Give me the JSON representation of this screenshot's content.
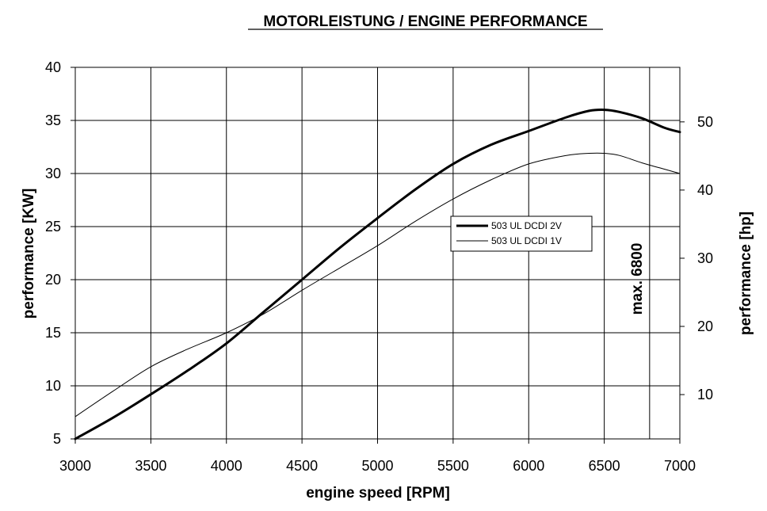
{
  "chart_data": {
    "type": "line",
    "title": "MOTORLEISTUNG / ENGINE PERFORMANCE",
    "xlabel": "engine speed [RPM]",
    "ylabel": "performance [KW]",
    "y2label": "performance [hp]",
    "xlim": [
      3000,
      7000
    ],
    "ylim": [
      5,
      40
    ],
    "y2lim": [
      3.5,
      58
    ],
    "x_ticks": [
      "3000",
      "3500",
      "4000",
      "4500",
      "5000",
      "5500",
      "6000",
      "6500",
      "7000"
    ],
    "y_ticks": [
      "5",
      "10",
      "15",
      "20",
      "25",
      "30",
      "35",
      "40"
    ],
    "y2_ticks": [
      "10",
      "20",
      "30",
      "40",
      "50"
    ],
    "grid": true,
    "legend_position": "center-right",
    "annotation": {
      "text": "max. 6800",
      "x": 6800
    },
    "series": [
      {
        "name": "503 UL DCDI 2V",
        "style": "thick",
        "x": [
          3000,
          3250,
          3500,
          3750,
          4000,
          4250,
          4500,
          4750,
          5000,
          5250,
          5500,
          5750,
          6000,
          6250,
          6400,
          6500,
          6600,
          6750,
          6900,
          7000
        ],
        "y": [
          5.0,
          7.0,
          9.2,
          11.5,
          14.0,
          17.0,
          20.0,
          23.0,
          25.8,
          28.5,
          30.9,
          32.7,
          34.0,
          35.3,
          35.9,
          36.0,
          35.8,
          35.2,
          34.3,
          33.9
        ]
      },
      {
        "name": "503 UL DCDI 1V",
        "style": "thin",
        "x": [
          3000,
          3250,
          3500,
          3750,
          4000,
          4250,
          4500,
          4750,
          5000,
          5250,
          5500,
          5750,
          6000,
          6250,
          6400,
          6500,
          6600,
          6750,
          6900,
          7000
        ],
        "y": [
          7.1,
          9.5,
          11.8,
          13.5,
          15.0,
          16.8,
          19.0,
          21.1,
          23.2,
          25.5,
          27.6,
          29.4,
          30.9,
          31.7,
          31.9,
          31.9,
          31.7,
          31.0,
          30.4,
          30.0
        ]
      }
    ]
  }
}
